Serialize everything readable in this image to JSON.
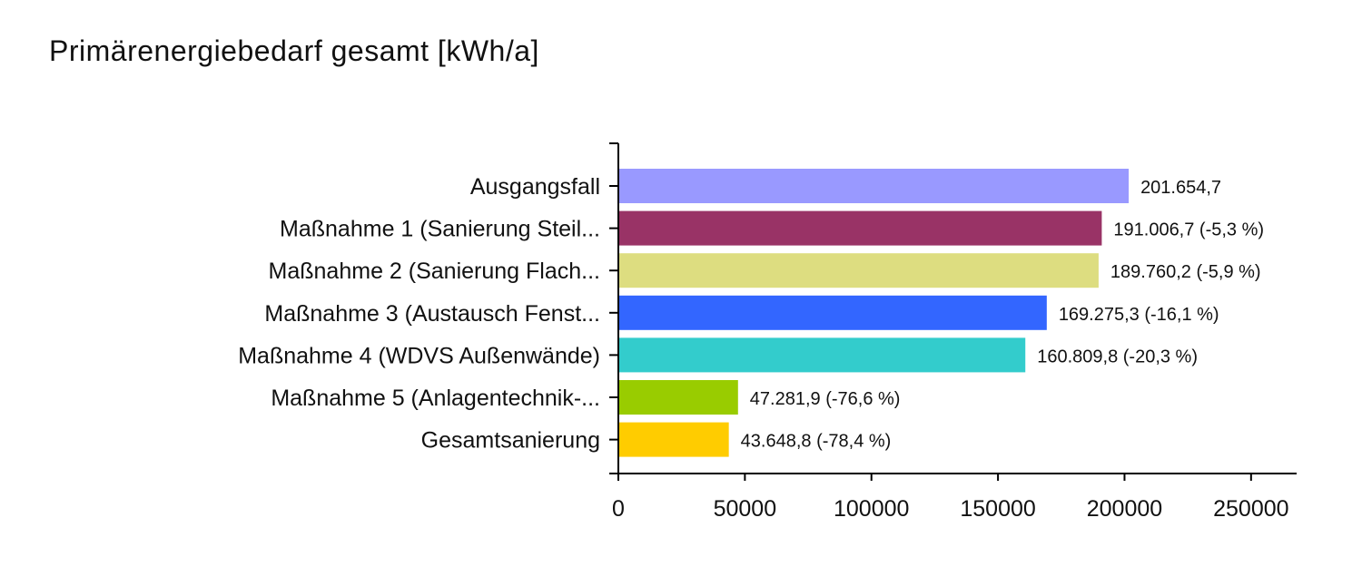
{
  "chart_data": {
    "type": "bar",
    "orientation": "horizontal",
    "title": "Primärenergiebedarf gesamt [kWh/a]",
    "categories": [
      "Ausgangsfall",
      "Maßnahme 1 (Sanierung Steil...",
      "Maßnahme 2 (Sanierung Flach...",
      "Maßnahme 3 (Austausch Fenst...",
      "Maßnahme 4 (WDVS Außenwände)",
      "Maßnahme 5 (Anlagentechnik-...",
      "Gesamtsanierung"
    ],
    "values": [
      201654.7,
      191006.7,
      189760.2,
      169275.3,
      160809.8,
      47281.9,
      43648.8
    ],
    "value_labels": [
      "201.654,7",
      "191.006,7 (-5,3 %)",
      "189.760,2 (-5,9 %)",
      "169.275,3 (-16,1 %)",
      "160.809,8 (-20,3 %)",
      "47.281,9 (-76,6 %)",
      "43.648,8 (-78,4 %)"
    ],
    "colors": [
      "#9999ff",
      "#993366",
      "#dddd80",
      "#3366ff",
      "#33cccc",
      "#99cc00",
      "#ffcc00"
    ],
    "xticks": [
      "0",
      "50000",
      "100000",
      "150000",
      "200000",
      "250000"
    ],
    "xlim": [
      0,
      268000
    ],
    "xlabel": "",
    "ylabel": "",
    "grid": false,
    "legend": false
  }
}
